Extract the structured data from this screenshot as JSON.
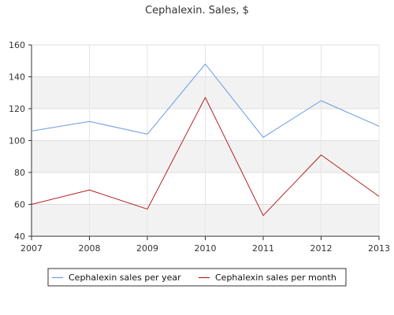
{
  "chart_data": {
    "type": "line",
    "title": "Cephalexin. Sales, $",
    "xlabel": "",
    "ylabel": "",
    "x": [
      "2007",
      "2008",
      "2009",
      "2010",
      "2011",
      "2012",
      "2013"
    ],
    "ylim": [
      40,
      160
    ],
    "yticks": [
      40,
      60,
      80,
      100,
      120,
      140,
      160
    ],
    "grid": true,
    "legend_position": "bottom",
    "series": [
      {
        "name": "Cephalexin sales per year",
        "color": "#6a9be6",
        "values": [
          106,
          112,
          104,
          148,
          102,
          125,
          109
        ]
      },
      {
        "name": "Cephalexin sales per month",
        "color": "#b22222",
        "values": [
          60,
          69,
          57,
          127,
          53,
          91,
          65
        ]
      }
    ]
  }
}
